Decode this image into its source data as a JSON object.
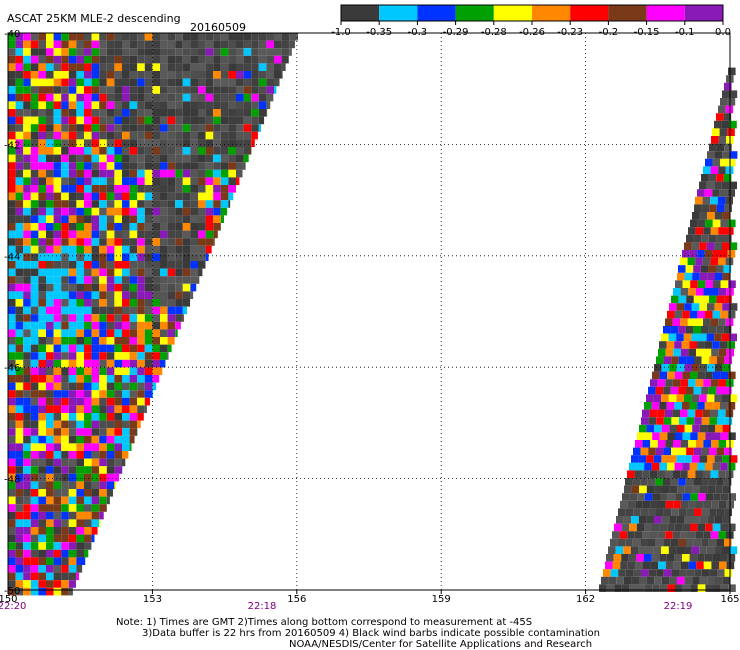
{
  "header": {
    "title": "ASCAT 25KM MLE-2 descending",
    "date": "20160509"
  },
  "colorbar": {
    "labels": [
      "-1.0",
      "-0.35",
      "-0.3",
      "-0.29",
      "-0.28",
      "-0.26",
      "-0.23",
      "-0.2",
      "-0.15",
      "-0.1",
      "0.0"
    ],
    "colors": [
      "#3a3a3a",
      "#00c8ff",
      "#0033ff",
      "#00a000",
      "#ffff00",
      "#ff8800",
      "#ff0000",
      "#7a3a1a",
      "#ff00ff",
      "#8a1ab8"
    ]
  },
  "map": {
    "lon_ticks": [
      "150",
      "153",
      "156",
      "159",
      "162",
      "165"
    ],
    "lat_ticks": [
      "-40",
      "-42",
      "-44",
      "-46",
      "-48",
      "-50"
    ],
    "times": [
      "22:20",
      "22:18",
      "22:19"
    ],
    "time_color": "#800080",
    "grid": "dotted"
  },
  "notes": [
    "Note: 1) Times are GMT 2)Times along bottom correspond to measurement at -45S",
    "3)Data buffer is 22 hrs from 20160509 4) Black wind barbs indicate possible contamination",
    "NOAA/NESDIS/Center for Satellite Applications and Research"
  ]
}
